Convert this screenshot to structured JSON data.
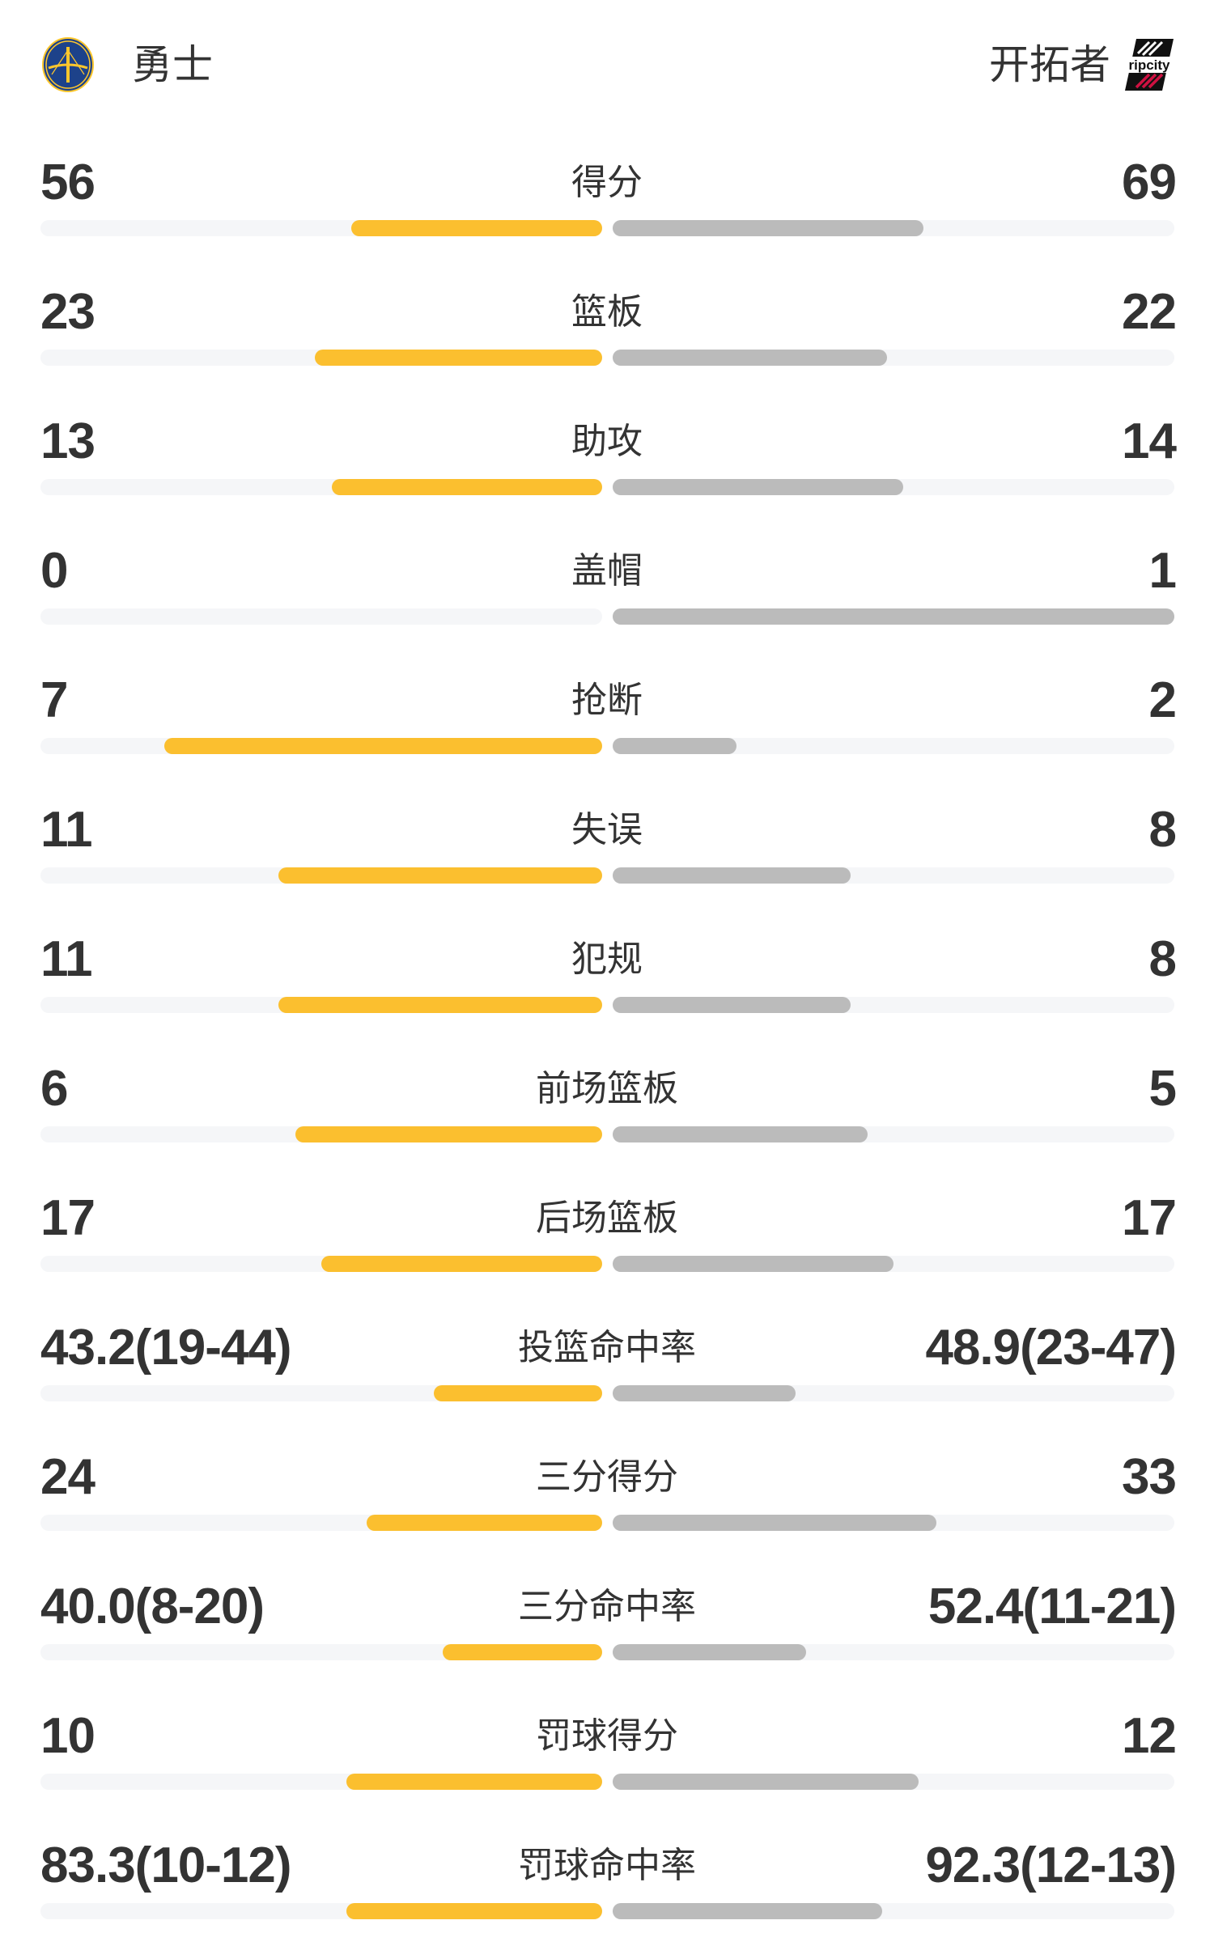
{
  "header": {
    "home_team": "勇士",
    "away_team": "开拓者",
    "home_logo": "warriors-bridge-logo",
    "away_logo": "ripcity-logo",
    "away_logo_text": "ripcity"
  },
  "colors": {
    "home_bar": "#FBBF2F",
    "away_bar": "#BBBBBB",
    "track": "#F5F6F8",
    "text": "#333333"
  },
  "stats": [
    {
      "label": "得分",
      "home": "56",
      "away": "69",
      "home_bar": 0.447,
      "away_bar": 0.553
    },
    {
      "label": "篮板",
      "home": "23",
      "away": "22",
      "home_bar": 0.511,
      "away_bar": 0.489
    },
    {
      "label": "助攻",
      "home": "13",
      "away": "14",
      "home_bar": 0.482,
      "away_bar": 0.518
    },
    {
      "label": "盖帽",
      "home": "0",
      "away": "1",
      "home_bar": 0,
      "away_bar": 1
    },
    {
      "label": "抢断",
      "home": "7",
      "away": "2",
      "home_bar": 0.78,
      "away_bar": 0.22
    },
    {
      "label": "失误",
      "home": "11",
      "away": "8",
      "home_bar": 0.577,
      "away_bar": 0.423
    },
    {
      "label": "犯规",
      "home": "11",
      "away": "8",
      "home_bar": 0.577,
      "away_bar": 0.423
    },
    {
      "label": "前场篮板",
      "home": "6",
      "away": "5",
      "home_bar": 0.546,
      "away_bar": 0.454
    },
    {
      "label": "后场篮板",
      "home": "17",
      "away": "17",
      "home_bar": 0.5,
      "away_bar": 0.5
    },
    {
      "label": "投篮命中率",
      "home": "43.2(19-44)",
      "away": "48.9(23-47)",
      "home_bar": 0.3,
      "away_bar": 0.326
    },
    {
      "label": "三分得分",
      "home": "24",
      "away": "33",
      "home_bar": 0.42,
      "away_bar": 0.577
    },
    {
      "label": "三分命中率",
      "home": "40.0(8-20)",
      "away": "52.4(11-21)",
      "home_bar": 0.284,
      "away_bar": 0.344
    },
    {
      "label": "罚球得分",
      "home": "10",
      "away": "12",
      "home_bar": 0.455,
      "away_bar": 0.545
    },
    {
      "label": "罚球命中率",
      "home": "83.3(10-12)",
      "away": "92.3(12-13)",
      "home_bar": 0.455,
      "away_bar": 0.48
    }
  ]
}
